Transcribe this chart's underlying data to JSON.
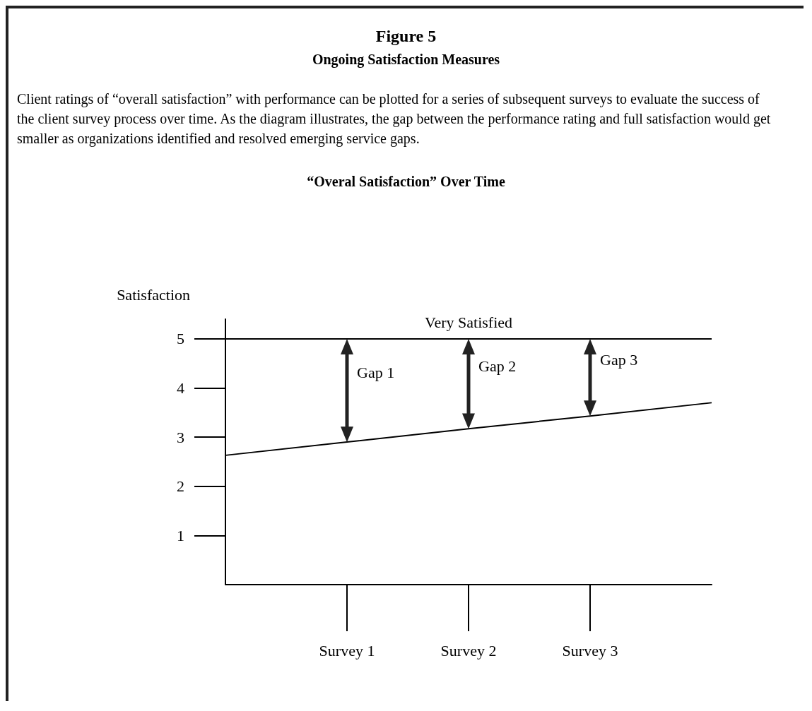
{
  "chart_data": {
    "type": "line",
    "title": "Figure 5",
    "subtitle": "Ongoing Satisfaction Measures",
    "annotations": [
      "Client ratings of “overall satisfaction” with performance can be plotted for a series of subsequent surveys to evaluate the success of the client survey process over time. As the diagram illustrates, the gap between the performance rating and full satisfaction would get smaller as organizations identified and resolved emerging service gaps.",
      "“Overal Satisfaction” Over Time",
      "Gap 1",
      "Gap 2",
      "Gap 3"
    ],
    "ylabel": "Satisfaction",
    "categories": [
      null,
      "Survey 1",
      "Survey 2",
      "Survey 3",
      null
    ],
    "series": [
      {
        "color": "#000000",
        "values": [
          2.63,
          2.9,
          3.17,
          3.43,
          3.7
        ]
      }
    ],
    "ylim": [
      0,
      5.4
    ],
    "yticks": [
      1,
      2,
      3,
      4,
      5
    ],
    "ref_lines": [
      {
        "axis": "y",
        "value": 5,
        "label": "Very Satisfied",
        "color": "#000000"
      }
    ],
    "grid": false,
    "marker": "none",
    "line_style": "solid"
  }
}
